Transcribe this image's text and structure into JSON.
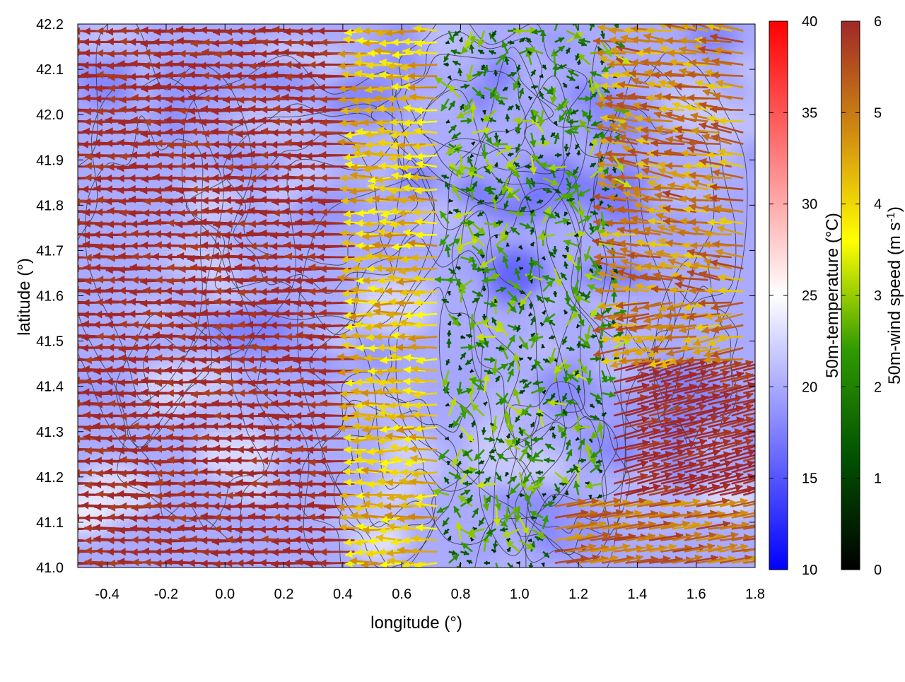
{
  "chart_data": {
    "type": "heatmap",
    "title": "",
    "xlabel": "longitude (°)",
    "ylabel": "latitude (°)",
    "xlim": [
      -0.5,
      1.8
    ],
    "ylim": [
      41.0,
      42.2
    ],
    "x_ticks": [
      -0.4,
      -0.2,
      0.0,
      0.2,
      0.4,
      0.6,
      0.8,
      1.0,
      1.2,
      1.4,
      1.6,
      1.8
    ],
    "x_tick_labels": [
      "-0.4",
      "-0.2",
      "0.0",
      "0.2",
      "0.4",
      "0.6",
      "0.8",
      "1.0",
      "1.2",
      "1.4",
      "1.6",
      "1.8"
    ],
    "y_ticks": [
      41.0,
      41.1,
      41.2,
      41.3,
      41.4,
      41.5,
      41.6,
      41.7,
      41.8,
      41.9,
      42.0,
      42.1,
      42.2
    ],
    "y_tick_labels": [
      "41.0",
      "41.1",
      "41.2",
      "41.3",
      "41.4",
      "41.5",
      "41.6",
      "41.7",
      "41.8",
      "41.9",
      "42.0",
      "42.1",
      "42.2"
    ],
    "grid": true,
    "temperature_field": {
      "label": "50m-temperature (°C)",
      "range": [
        10,
        40
      ],
      "ticks": [
        10,
        15,
        20,
        25,
        30,
        35,
        40
      ],
      "tick_labels": [
        "10",
        "15",
        "20",
        "25",
        "30",
        "35",
        "40"
      ],
      "colors": [
        "#0000ff",
        "#ffffff",
        "#ff0000"
      ],
      "typical_value": 20
    },
    "wind_field": {
      "label_main": "50m-wind speed (m s",
      "label_sup": "-1",
      "label_end": ")",
      "range": [
        0,
        6
      ],
      "ticks": [
        0,
        1,
        2,
        3,
        4,
        5,
        6
      ],
      "tick_labels": [
        "0",
        "1",
        "2",
        "3",
        "4",
        "5",
        "6"
      ],
      "colors": [
        "#000000",
        "#005000",
        "#2f9a00",
        "#ffff00",
        "#d08a10",
        "#a02828"
      ],
      "grid_spacing": [
        0.04,
        0.025
      ],
      "vectors_note": "strong easterly flow (about 6 m/s) on west side, weak variable winds around 0.8-1.3, easterlies/northerlies 4-6 m/s near east coast"
    },
    "contours": {
      "color": "#333333",
      "note": "terrain elevation contours"
    }
  }
}
